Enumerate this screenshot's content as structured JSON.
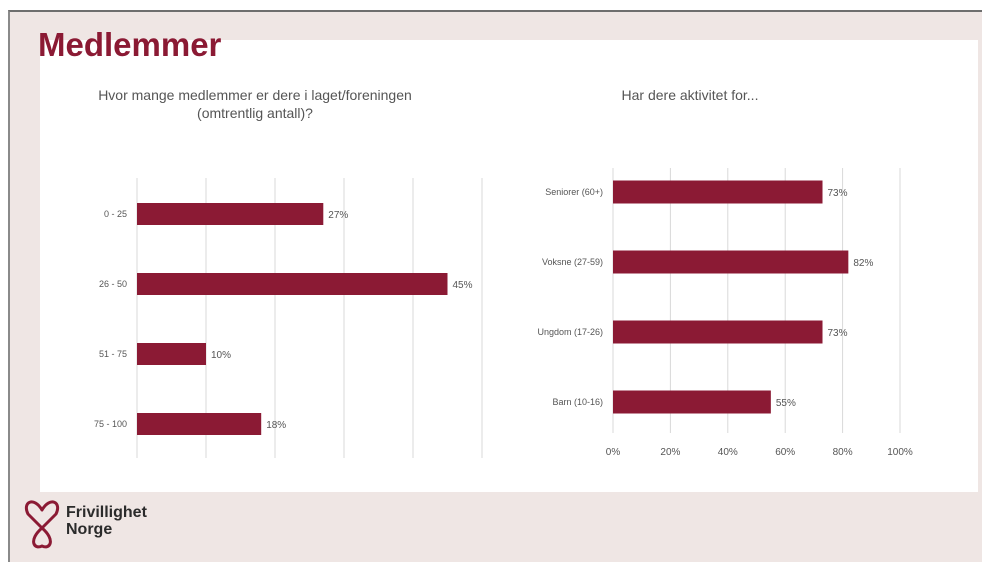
{
  "slide": {
    "title": "Medlemmer"
  },
  "brand": {
    "line1": "Frivillighet",
    "line2": "Norge",
    "icon": "heart-outline-icon",
    "color": "#8b1a34"
  },
  "colors": {
    "bar": "#8b1a34",
    "grid": "#d9d9d9",
    "text": "#555555"
  },
  "chart_data": [
    {
      "type": "bar",
      "orientation": "horizontal",
      "title": "Hvor mange medlemmer er dere i laget/foreningen (omtrentlig antall)?",
      "categories": [
        "0 - 25",
        "26 - 50",
        "51 - 75",
        "75 - 100"
      ],
      "values": [
        27,
        45,
        10,
        18
      ],
      "labels": [
        "27%",
        "45%",
        "10%",
        "18%"
      ],
      "xlim": [
        0,
        50
      ],
      "grid": true
    },
    {
      "type": "bar",
      "orientation": "horizontal",
      "title": "Har dere aktivitet for...",
      "categories": [
        "Seniorer (60+)",
        "Voksne (27-59)",
        "Ungdom (17-26)",
        "Barn (10-16)"
      ],
      "values": [
        73,
        82,
        73,
        55
      ],
      "labels": [
        "73%",
        "82%",
        "73%",
        "55%"
      ],
      "xlim": [
        0,
        100
      ],
      "ticks": [
        "0%",
        "20%",
        "40%",
        "60%",
        "80%",
        "100%"
      ],
      "grid": true
    }
  ]
}
